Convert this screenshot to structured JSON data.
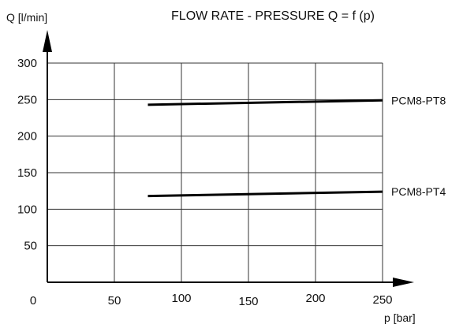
{
  "chart_data": {
    "type": "line",
    "title": "FLOW RATE - PRESSURE Q = f (p)",
    "xlabel": "p [bar]",
    "ylabel": "Q [l/min]",
    "xlim": [
      0,
      250
    ],
    "ylim": [
      0,
      300
    ],
    "x_ticks": [
      "0",
      "50",
      "100",
      "150",
      "200",
      "250"
    ],
    "y_ticks": [
      "300",
      "250",
      "200",
      "150",
      "100",
      "50"
    ],
    "grid": true,
    "series": [
      {
        "name": "PCM8-PT8",
        "x": [
          75,
          250
        ],
        "y": [
          243,
          249
        ]
      },
      {
        "name": "PCM8-PT4",
        "x": [
          75,
          250
        ],
        "y": [
          118,
          124
        ]
      }
    ]
  }
}
